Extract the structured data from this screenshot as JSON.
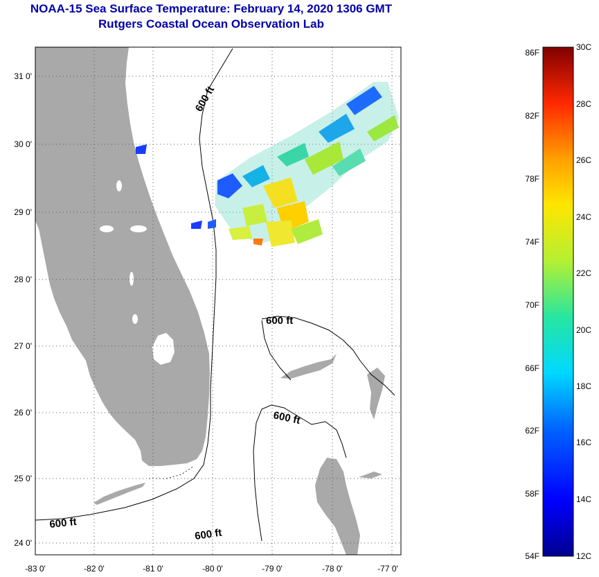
{
  "title": {
    "line1": "NOAA-15 Sea Surface Temperature:  February 14, 2020 1306 GMT",
    "line2": "Rutgers Coastal Ocean Observation Lab"
  },
  "map": {
    "lon_labels": [
      "-83 0'",
      "-82 0'",
      "-81 0'",
      "-80 0'",
      "-79 0'",
      "-78 0'",
      "-77 0'"
    ],
    "lat_labels": [
      "31 0'",
      "30 0'",
      "29 0'",
      "28 0'",
      "27 0'",
      "26 0'",
      "25 0'",
      "24 0'"
    ],
    "contour_labels": [
      "600 ft",
      "600 ft",
      "600 ft",
      "600 ft",
      "600 ft"
    ],
    "colors": {
      "land": "#a9a9a9",
      "ocean": "#ffffff",
      "frame": "#000000"
    }
  },
  "colorbar": {
    "fahrenheit": [
      "86F",
      "82F",
      "78F",
      "74F",
      "70F",
      "66F",
      "62F",
      "58F",
      "54F"
    ],
    "celsius": [
      "30C",
      "28C",
      "26C",
      "24C",
      "22C",
      "20C",
      "18C",
      "16C",
      "14C",
      "12C"
    ],
    "range_c": [
      12,
      30
    ]
  }
}
